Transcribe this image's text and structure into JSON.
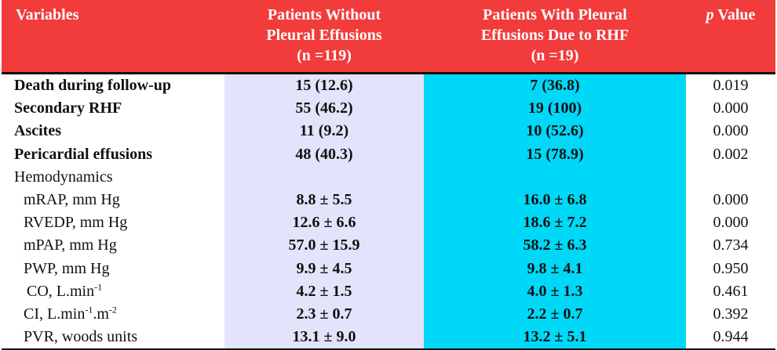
{
  "header": {
    "col_variables": "Variables",
    "col_without_1": "Patients Without",
    "col_without_2": "Pleural Effusions",
    "col_without_3": "(n =119)",
    "col_with_1": "Patients With Pleural",
    "col_with_2": "Effusions Due to RHF",
    "col_with_3": "(n =19)",
    "col_p_italic": "p",
    "col_p_rest": " Value"
  },
  "rows": [
    {
      "label": "Death during follow-up",
      "without": "15 (12.6)",
      "with": "7 (36.8)",
      "p": "0.019"
    },
    {
      "label": "Secondary RHF",
      "without": "55 (46.2)",
      "with": "19 (100)",
      "p": "0.000"
    },
    {
      "label": "Ascites",
      "without": "11 (9.2)",
      "with": "10 (52.6)",
      "p": "0.000"
    },
    {
      "label": "Pericardial effusions",
      "without": "48 (40.3)",
      "with": "15 (78.9)",
      "p": "0.002"
    },
    {
      "label": "Hemodynamics",
      "without": "",
      "with": "",
      "p": ""
    },
    {
      "label": "mRAP, mm Hg",
      "without": "8.8 ± 5.5",
      "with": "16.0 ± 6.8",
      "p": "0.000"
    },
    {
      "label": "RVEDP, mm Hg",
      "without": "12.6 ± 6.6",
      "with": "18.6 ± 7.2",
      "p": "0.000"
    },
    {
      "label": "mPAP, mm Hg",
      "without": "57.0 ± 15.9",
      "with": "58.2 ± 6.3",
      "p": "0.734"
    },
    {
      "label": "PWP, mm Hg",
      "without": "9.9 ± 4.5",
      "with": "9.8 ± 4.1",
      "p": "0.950"
    },
    {
      "label_main": "CO, L.min",
      "label_sup": "-1",
      "without": "4.2 ± 1.5",
      "with": "4.0 ± 1.3",
      "p": "0.461"
    },
    {
      "label_main": "CI, L.min",
      "label_sup": "-1",
      "label_mid": ".m",
      "label_sup2": "-2",
      "without": "2.3 ± 0.7",
      "with": "2.2 ± 0.7",
      "p": "0.392"
    },
    {
      "label": "PVR, woods units",
      "without": "13.1 ± 9.0",
      "with": "13.2 ± 5.1",
      "p": "0.944"
    }
  ]
}
